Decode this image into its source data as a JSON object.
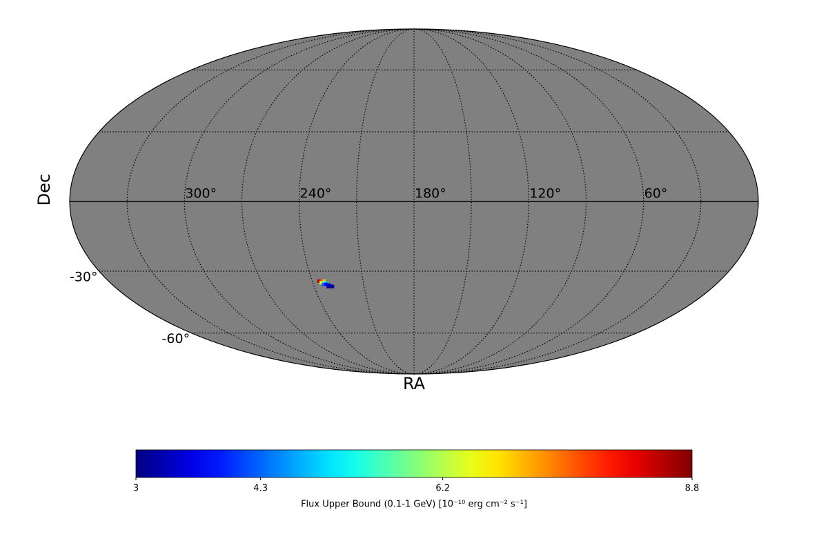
{
  "chart_data": {
    "type": "mollweide",
    "xlabel": "RA",
    "ylabel": "Dec",
    "xlim": [
      360,
      0
    ],
    "ylim": [
      -90,
      90
    ],
    "xticks": [
      {
        "value": 300,
        "label": "300°"
      },
      {
        "value": 240,
        "label": "240°"
      },
      {
        "value": 180,
        "label": "180°"
      },
      {
        "value": 120,
        "label": "120°"
      },
      {
        "value": 60,
        "label": "60°"
      }
    ],
    "yticks": [
      {
        "value": -30,
        "label": "-30°"
      },
      {
        "value": -60,
        "label": "-60°"
      }
    ],
    "xgrid": [
      30,
      60,
      90,
      120,
      150,
      180,
      210,
      240,
      270,
      300,
      330
    ],
    "ygrid": [
      -60,
      -30,
      0,
      30,
      60
    ],
    "grid": true,
    "background": "#808080",
    "colormap": "jet",
    "ra": [
      236,
      234.5,
      233,
      235,
      233.5,
      232,
      234,
      232.5,
      231,
      230,
      231.5,
      229
    ],
    "dec": [
      -34.5,
      -34.5,
      -34.5,
      -35.2,
      -35.2,
      -35.5,
      -36,
      -36,
      -36.3,
      -36.8,
      -37,
      -37
    ],
    "values": [
      8.5,
      7.8,
      7.0,
      6.5,
      5.5,
      4.8,
      4.3,
      3.8,
      3.5,
      3.3,
      3.2,
      3.1
    ],
    "colorbar": {
      "label": "Flux Upper Bound (0.1-1 GeV) [10⁻¹⁰ erg cm⁻² s⁻¹]",
      "clim": [
        3,
        8.8
      ],
      "ticks": [
        3,
        4.3,
        6.2,
        8.8
      ]
    }
  }
}
